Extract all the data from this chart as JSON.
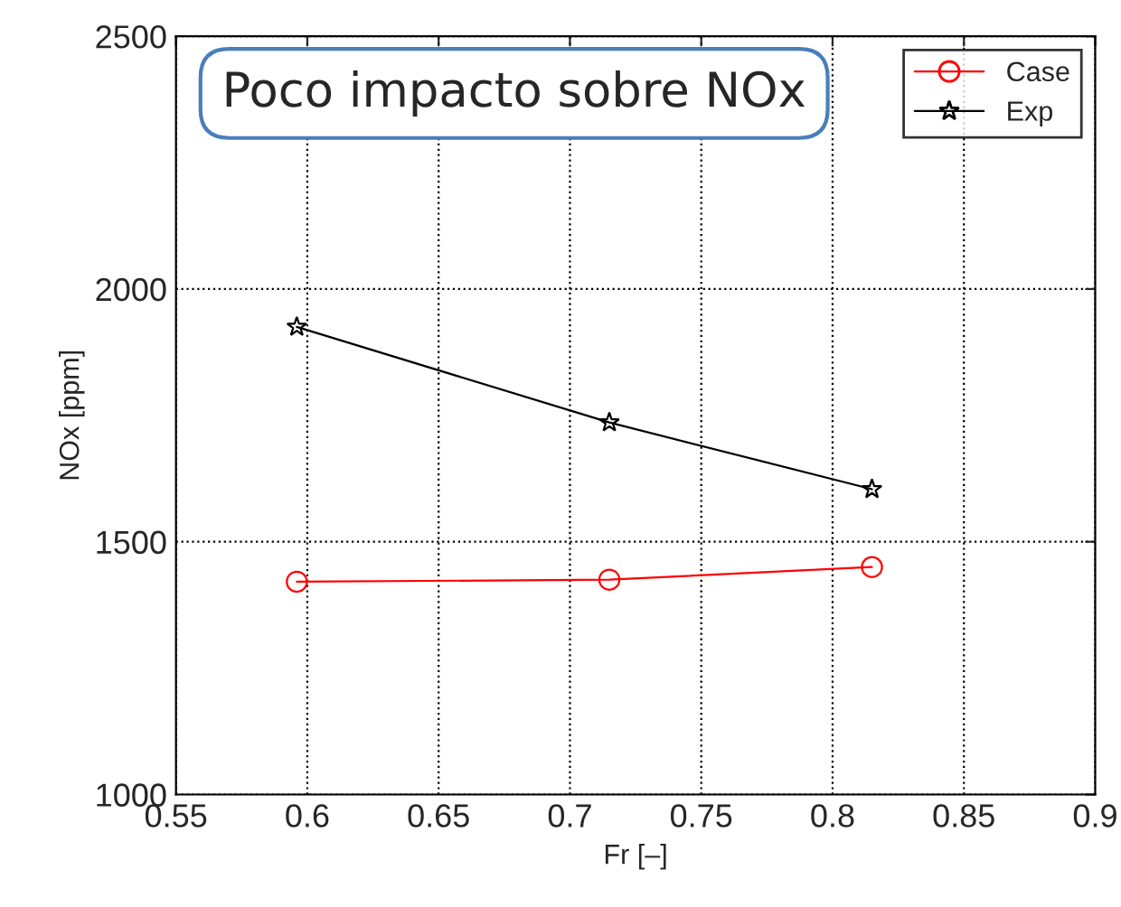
{
  "chart_data": {
    "type": "line",
    "xlabel": "Fr [–]",
    "ylabel": "NOx [ppm]",
    "x": [
      0.596,
      0.715,
      0.815
    ],
    "series": [
      {
        "name": "Case",
        "color": "#ff0000",
        "marker": "circle",
        "values": [
          1421,
          1425,
          1450
        ]
      },
      {
        "name": "Exp",
        "color": "#000000",
        "marker": "star",
        "values": [
          1925,
          1736,
          1604
        ]
      }
    ],
    "xlim": [
      0.55,
      0.9
    ],
    "xticks": [
      0.55,
      0.6,
      0.65,
      0.7,
      0.75,
      0.8,
      0.85,
      0.9
    ],
    "ylim": [
      1000,
      2500
    ],
    "yticks": [
      1000,
      1500,
      2000,
      2500
    ],
    "grid": true,
    "legend": "top right",
    "line_style": "solid",
    "annotations": [
      "Poco impacto sobre NOx"
    ]
  }
}
